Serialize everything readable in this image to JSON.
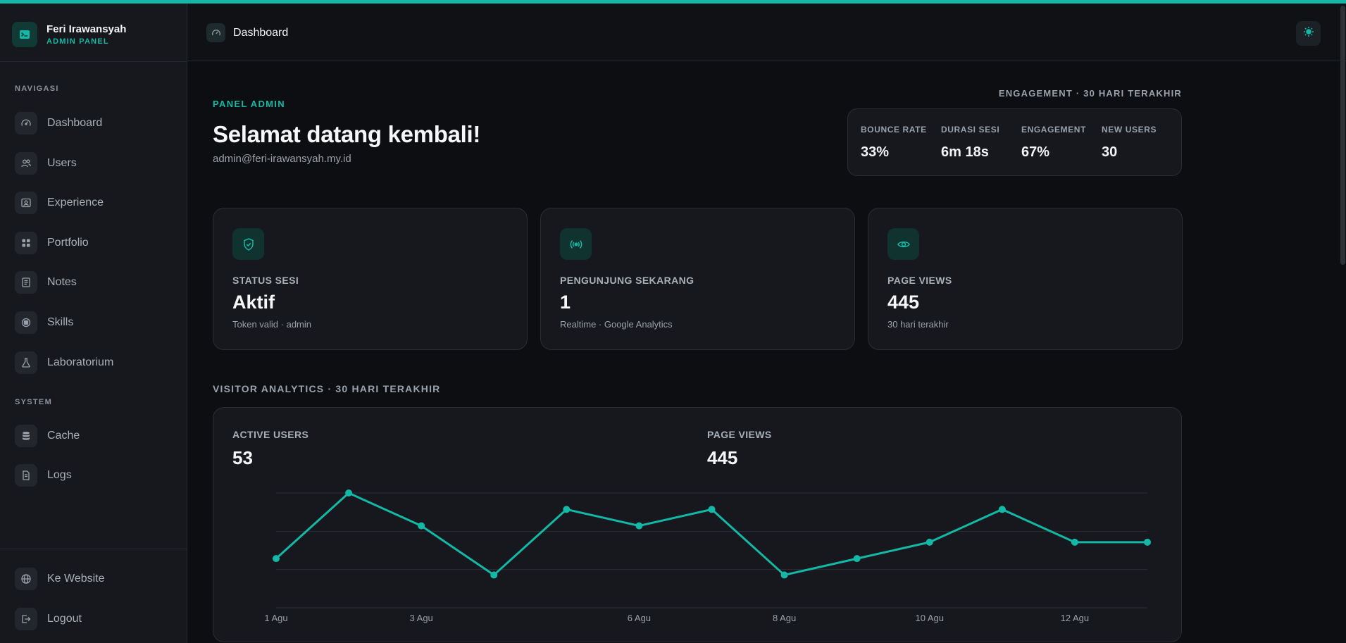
{
  "brand": {
    "name": "Feri Irawansyah",
    "subtitle": "ADMIN PANEL"
  },
  "sidebar": {
    "section_nav": "NAVIGASI",
    "nav_items": [
      {
        "label": "Dashboard",
        "icon": "gauge-icon"
      },
      {
        "label": "Users",
        "icon": "users-icon"
      },
      {
        "label": "Experience",
        "icon": "id-card-icon"
      },
      {
        "label": "Portfolio",
        "icon": "grid-icon"
      },
      {
        "label": "Notes",
        "icon": "notes-icon"
      },
      {
        "label": "Skills",
        "icon": "chip-icon"
      },
      {
        "label": "Laboratorium",
        "icon": "flask-icon"
      }
    ],
    "section_system": "SYSTEM",
    "system_items": [
      {
        "label": "Cache",
        "icon": "database-icon"
      },
      {
        "label": "Logs",
        "icon": "file-icon"
      }
    ],
    "footer_items": [
      {
        "label": "Ke Website",
        "icon": "globe-icon"
      },
      {
        "label": "Logout",
        "icon": "logout-icon"
      }
    ]
  },
  "header": {
    "breadcrumb": "Dashboard",
    "theme_icon": "sun-icon"
  },
  "hero": {
    "eyebrow": "PANEL ADMIN",
    "title": "Selamat datang kembali!",
    "email": "admin@feri-irawansyah.my.id"
  },
  "engagement": {
    "title": "ENGAGEMENT · 30 HARI TERAKHIR",
    "stats": [
      {
        "label": "BOUNCE RATE",
        "value": "33%"
      },
      {
        "label": "DURASI SESI",
        "value": "6m 18s"
      },
      {
        "label": "ENGAGEMENT",
        "value": "67%"
      },
      {
        "label": "NEW USERS",
        "value": "30"
      }
    ]
  },
  "cards": [
    {
      "icon": "shield-check-icon",
      "label": "STATUS SESI",
      "value": "Aktif",
      "note": "Token valid · admin"
    },
    {
      "icon": "broadcast-icon",
      "label": "PENGUNJUNG SEKARANG",
      "value": "1",
      "note": "Realtime · Google Analytics"
    },
    {
      "icon": "eye-icon",
      "label": "PAGE VIEWS",
      "value": "445",
      "note": "30 hari terakhir"
    }
  ],
  "analytics": {
    "title": "VISITOR ANALYTICS · 30 HARI TERAKHIR",
    "metrics": [
      {
        "label": "ACTIVE USERS",
        "value": "53"
      },
      {
        "label": "PAGE VIEWS",
        "value": "445"
      }
    ]
  },
  "colors": {
    "accent": "#14b8a6",
    "background": "#0d0e11",
    "surface": "#16181d"
  },
  "chart_data": {
    "type": "line",
    "x": [
      "1 Agu",
      "2 Agu",
      "3 Agu",
      "4 Agu",
      "5 Agu",
      "6 Agu",
      "7 Agu",
      "8 Agu",
      "9 Agu",
      "10 Agu",
      "11 Agu",
      "12 Agu",
      "13 Agu"
    ],
    "x_tick_labels": [
      "1 Agu",
      "3 Agu",
      "6 Agu",
      "8 Agu",
      "10 Agu",
      "12 Agu"
    ],
    "series": [
      {
        "values": [
          3,
          7,
          5,
          2,
          6,
          5,
          6,
          2,
          3,
          4,
          6,
          4,
          4
        ]
      }
    ],
    "ylim": [
      0,
      7
    ],
    "grid": true,
    "legend": "none",
    "color": "#14b8a6"
  }
}
